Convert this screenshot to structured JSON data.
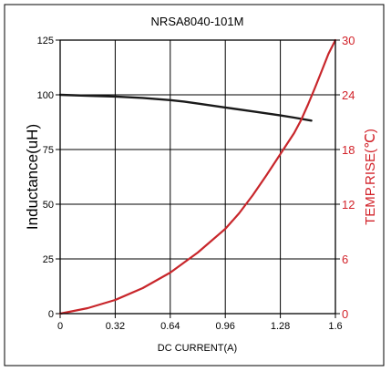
{
  "chart_data": {
    "type": "line",
    "title": "NRSA8040-101M",
    "xlabel": "DC CURRENT(A)",
    "ylabel_left": "Inductance(uH)",
    "ylabel_right": "TEMP.RISE(℃)",
    "x_ticks": [
      "0",
      "0.32",
      "0.64",
      "0.96",
      "1.28",
      "1.6"
    ],
    "y_left_ticks": [
      "0",
      "25",
      "50",
      "75",
      "100",
      "125"
    ],
    "y_right_ticks": [
      "0",
      "6",
      "12",
      "18",
      "24",
      "30"
    ],
    "xlim": [
      0,
      1.6
    ],
    "ylim_left": [
      0,
      125
    ],
    "ylim_right": [
      0,
      30
    ],
    "grid": true,
    "colors": {
      "inductance": "#1a1a1a",
      "temp_rise": "#c8262b",
      "right_axis_text": "#d2232a",
      "grid": "#000000"
    },
    "series": [
      {
        "axis": "left",
        "x": [
          0,
          0.16,
          0.32,
          0.48,
          0.64,
          0.72,
          0.8,
          0.96,
          1.12,
          1.28,
          1.36,
          1.46
        ],
        "y": [
          100,
          99.6,
          99.2,
          98.6,
          97.6,
          96.9,
          96.0,
          94.2,
          92.4,
          90.6,
          89.6,
          88.2
        ]
      },
      {
        "axis": "right",
        "x": [
          0,
          0.16,
          0.32,
          0.48,
          0.64,
          0.8,
          0.96,
          1.04,
          1.12,
          1.2,
          1.28,
          1.36,
          1.4,
          1.44,
          1.48,
          1.52,
          1.56,
          1.6
        ],
        "y": [
          0,
          0.6,
          1.5,
          2.8,
          4.5,
          6.7,
          9.3,
          11.0,
          13.0,
          15.2,
          17.5,
          19.8,
          21.2,
          22.9,
          24.7,
          26.6,
          28.5,
          30
        ]
      }
    ]
  }
}
